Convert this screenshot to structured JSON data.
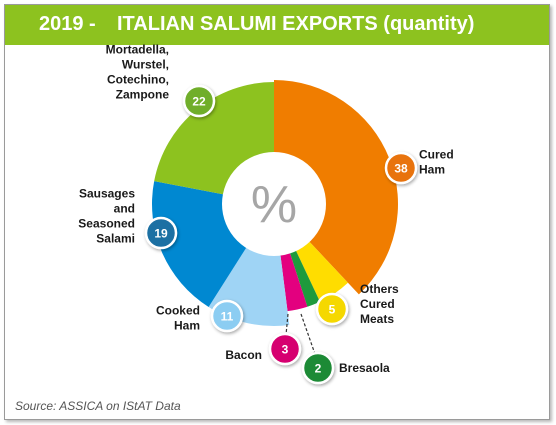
{
  "header": {
    "year": "2019 -",
    "title": "ITALIAN SALUMI EXPORTS (quantity)"
  },
  "source": "Source: ASSICA on IStAT Data",
  "center_symbol": "%",
  "colors": {
    "title_bar": "#8dc21f",
    "cured_ham": "#f07d00",
    "others_cured_meats": "#ffdd00",
    "bresaola": "#1e9a3c",
    "bacon": "#e3007f",
    "cooked_ham": "#9fd4f5",
    "sausages": "#0088d1",
    "mortadella": "#8dc21f"
  },
  "chart_data": {
    "type": "pie",
    "style": "donut",
    "title": "ITALIAN SALUMI EXPORTS (quantity)",
    "unit": "%",
    "slices": [
      {
        "label": "Cured Ham",
        "value": 38,
        "color": "#f07d00",
        "badge": "#e8730a"
      },
      {
        "label": "Others Cured Meats",
        "value": 5,
        "color": "#ffdd00",
        "badge": "#f5d800"
      },
      {
        "label": "Bresaola",
        "value": 2,
        "color": "#1e9a3c",
        "badge": "#1e8a36"
      },
      {
        "label": "Bacon",
        "value": 3,
        "color": "#e3007f",
        "badge": "#d6006f"
      },
      {
        "label": "Cooked Ham",
        "value": 11,
        "color": "#9fd4f5",
        "badge": "#8ccdf2"
      },
      {
        "label": "Sausages and Seasoned Salami",
        "value": 19,
        "color": "#0088d1",
        "badge": "#1a6fa3"
      },
      {
        "label": "Mortadella, Wurstel, Cotechino, Zampone",
        "value": 22,
        "color": "#8dc21f",
        "badge": "#6fae2a"
      }
    ]
  }
}
